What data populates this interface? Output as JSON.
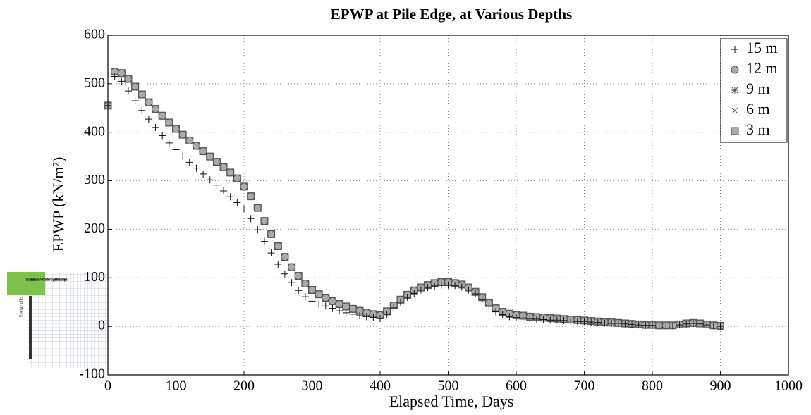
{
  "chart_data": {
    "type": "scatter",
    "title": "EPWP at Pile Edge, at Various Depths",
    "xlabel": "Elapsed Time, Days",
    "ylabel": "EPWP (kN/m²)",
    "xlim": [
      0,
      1000
    ],
    "xticks": [
      0,
      100,
      200,
      300,
      400,
      500,
      600,
      700,
      800,
      900,
      1000
    ],
    "ylim": [
      -100,
      600
    ],
    "yticks": [
      -100,
      0,
      100,
      200,
      300,
      400,
      500,
      600
    ],
    "grid": true,
    "legend": "upper right",
    "x": [
      0,
      10,
      20,
      30,
      40,
      50,
      60,
      70,
      80,
      90,
      100,
      110,
      120,
      130,
      140,
      150,
      160,
      170,
      180,
      190,
      200,
      210,
      220,
      230,
      240,
      250,
      260,
      270,
      280,
      290,
      300,
      310,
      320,
      330,
      340,
      350,
      360,
      370,
      380,
      390,
      400,
      410,
      420,
      430,
      440,
      450,
      460,
      470,
      480,
      490,
      500,
      510,
      520,
      530,
      540,
      550,
      560,
      570,
      580,
      590,
      600,
      610,
      620,
      630,
      640,
      650,
      660,
      670,
      680,
      690,
      700,
      710,
      720,
      730,
      740,
      750,
      760,
      770,
      780,
      790,
      800,
      810,
      820,
      830,
      840,
      850,
      860,
      870,
      880,
      890,
      900
    ],
    "series": [
      {
        "name": "15 m",
        "marker": "plus",
        "color": "#111111",
        "values": [
          455,
          515,
          505,
          485,
          465,
          445,
          427,
          410,
          393,
          378,
          364,
          351,
          338,
          326,
          314,
          302,
          291,
          279,
          267,
          255,
          242,
          222,
          199,
          175,
          151,
          128,
          108,
          90,
          74,
          61,
          52,
          46,
          42,
          37,
          32,
          28,
          25,
          22,
          20,
          18,
          16,
          25,
          38,
          50,
          60,
          68,
          75,
          80,
          83,
          85,
          85,
          84,
          81,
          75,
          67,
          55,
          42,
          30,
          24,
          20,
          18,
          17,
          16,
          15,
          14,
          13,
          13,
          12,
          11,
          10,
          10,
          9,
          8,
          7,
          6,
          6,
          5,
          4,
          3,
          2,
          2,
          1,
          1,
          1,
          3,
          5,
          6,
          5,
          3,
          1,
          0
        ]
      },
      {
        "name": "12 m",
        "marker": "circle",
        "color": "#555555",
        "values": [
          455,
          525,
          522,
          510,
          494,
          478,
          462,
          448,
          434,
          420,
          407,
          395,
          383,
          372,
          361,
          350,
          339,
          328,
          317,
          305,
          288,
          268,
          244,
          217,
          190,
          165,
          143,
          122,
          104,
          88,
          75,
          66,
          59,
          52,
          46,
          41,
          36,
          32,
          28,
          25,
          23,
          31,
          43,
          55,
          65,
          74,
          80,
          85,
          89,
          91,
          91,
          89,
          86,
          80,
          71,
          60,
          48,
          37,
          30,
          26,
          23,
          22,
          20,
          19,
          18,
          17,
          16,
          15,
          14,
          13,
          12,
          11,
          10,
          9,
          8,
          7,
          6,
          5,
          4,
          3,
          3,
          2,
          2,
          2,
          4,
          6,
          7,
          6,
          4,
          2,
          1
        ]
      },
      {
        "name": "9 m",
        "marker": "star",
        "color": "#555555",
        "values": [
          455,
          525,
          522,
          510,
          494,
          478,
          462,
          448,
          434,
          420,
          407,
          395,
          383,
          372,
          361,
          350,
          339,
          328,
          317,
          305,
          288,
          268,
          244,
          217,
          190,
          165,
          143,
          122,
          104,
          88,
          75,
          66,
          59,
          52,
          46,
          41,
          36,
          32,
          28,
          25,
          23,
          31,
          43,
          55,
          65,
          74,
          80,
          85,
          89,
          91,
          91,
          89,
          86,
          80,
          71,
          60,
          48,
          37,
          30,
          26,
          23,
          22,
          20,
          19,
          18,
          17,
          16,
          15,
          14,
          13,
          12,
          11,
          10,
          9,
          8,
          7,
          6,
          5,
          4,
          3,
          3,
          2,
          2,
          2,
          4,
          6,
          7,
          6,
          4,
          2,
          1
        ]
      },
      {
        "name": "6 m",
        "marker": "x",
        "color": "#555555",
        "values": [
          455,
          525,
          522,
          510,
          494,
          478,
          462,
          448,
          434,
          420,
          407,
          395,
          383,
          372,
          361,
          350,
          339,
          328,
          317,
          305,
          288,
          268,
          244,
          217,
          190,
          165,
          143,
          122,
          104,
          88,
          75,
          66,
          59,
          52,
          46,
          41,
          36,
          32,
          28,
          25,
          23,
          31,
          43,
          55,
          65,
          74,
          80,
          85,
          89,
          91,
          91,
          89,
          86,
          80,
          71,
          60,
          48,
          37,
          30,
          26,
          23,
          22,
          20,
          19,
          18,
          17,
          16,
          15,
          14,
          13,
          12,
          11,
          10,
          9,
          8,
          7,
          6,
          5,
          4,
          3,
          3,
          2,
          2,
          2,
          4,
          6,
          7,
          6,
          4,
          2,
          1
        ]
      },
      {
        "name": "3 m",
        "marker": "square",
        "color": "#555555",
        "values": [
          455,
          525,
          522,
          510,
          494,
          478,
          462,
          448,
          434,
          420,
          407,
          395,
          383,
          372,
          361,
          350,
          339,
          328,
          317,
          305,
          288,
          268,
          244,
          217,
          190,
          165,
          143,
          122,
          104,
          88,
          75,
          66,
          59,
          52,
          46,
          41,
          36,
          32,
          28,
          25,
          23,
          31,
          43,
          55,
          65,
          74,
          80,
          85,
          89,
          91,
          91,
          89,
          86,
          80,
          71,
          60,
          48,
          37,
          30,
          26,
          23,
          22,
          20,
          19,
          18,
          17,
          16,
          15,
          14,
          13,
          12,
          11,
          10,
          9,
          8,
          7,
          6,
          5,
          4,
          3,
          3,
          2,
          2,
          2,
          4,
          6,
          7,
          6,
          4,
          2,
          1
        ]
      }
    ]
  },
  "inset": {
    "caption": "Temperature and EPWP Conditions Along the Pile at Various Depths",
    "pile_label": "Energy pile"
  }
}
